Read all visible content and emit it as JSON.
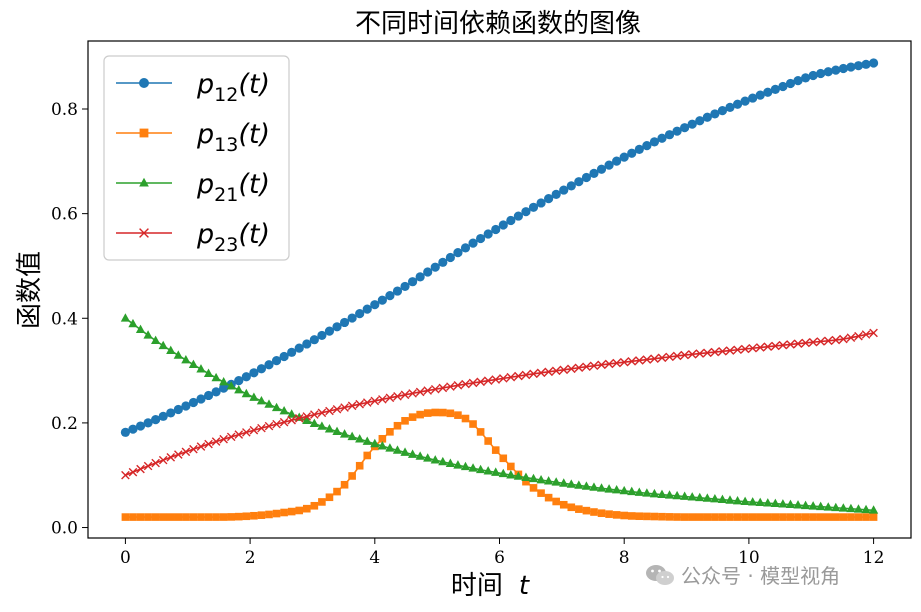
{
  "chart_data": {
    "type": "line",
    "title": "不同时间依赖函数的图像",
    "xlabel": "时间",
    "xlabel_var": "t",
    "ylabel": "函数值",
    "xlim": [
      -0.6,
      12.6
    ],
    "ylim": [
      -0.02,
      0.93
    ],
    "x_ticks": [
      0,
      2,
      4,
      6,
      8,
      10,
      12
    ],
    "x_tick_labels": [
      "0",
      "2",
      "4",
      "6",
      "8",
      "10",
      "12"
    ],
    "y_ticks": [
      0.0,
      0.2,
      0.4,
      0.6,
      0.8
    ],
    "y_tick_labels": [
      "0.0",
      "0.2",
      "0.4",
      "0.6",
      "0.8"
    ],
    "legend_position": "top-left",
    "x": [
      0,
      0.5,
      1,
      1.5,
      2,
      2.5,
      3,
      3.5,
      4,
      4.5,
      5,
      5.5,
      6,
      6.5,
      7,
      7.5,
      8,
      8.5,
      9,
      9.5,
      10,
      10.5,
      11,
      11.5,
      12
    ],
    "series": [
      {
        "name": "p12(t)",
        "label_base": "p",
        "label_sub": "12",
        "label_arg": "(t)",
        "color": "#1f77b4",
        "marker": "circle",
        "values": [
          0.182,
          0.207,
          0.234,
          0.262,
          0.292,
          0.324,
          0.357,
          0.391,
          0.426,
          0.462,
          0.5,
          0.538,
          0.574,
          0.609,
          0.643,
          0.676,
          0.708,
          0.738,
          0.766,
          0.793,
          0.818,
          0.841,
          0.863,
          0.877,
          0.888
        ]
      },
      {
        "name": "p13(t)",
        "label_base": "p",
        "label_sub": "13",
        "label_arg": "(t)",
        "color": "#ff7f0e",
        "marker": "square",
        "values": [
          0.02,
          0.02,
          0.02,
          0.02,
          0.022,
          0.028,
          0.04,
          0.08,
          0.155,
          0.205,
          0.22,
          0.205,
          0.14,
          0.08,
          0.045,
          0.03,
          0.023,
          0.021,
          0.02,
          0.02,
          0.02,
          0.02,
          0.02,
          0.02,
          0.02
        ]
      },
      {
        "name": "p21(t)",
        "label_base": "p",
        "label_sub": "21",
        "label_arg": "(t)",
        "color": "#2ca02c",
        "marker": "triangle",
        "values": [
          0.4,
          0.356,
          0.318,
          0.283,
          0.252,
          0.225,
          0.2,
          0.179,
          0.16,
          0.143,
          0.128,
          0.115,
          0.104,
          0.094,
          0.085,
          0.077,
          0.07,
          0.064,
          0.059,
          0.054,
          0.049,
          0.045,
          0.041,
          0.037,
          0.033
        ]
      },
      {
        "name": "p23(t)",
        "label_base": "p",
        "label_sub": "23",
        "label_arg": "(t)",
        "color": "#d62728",
        "marker": "x",
        "values": [
          0.1,
          0.124,
          0.146,
          0.166,
          0.184,
          0.2,
          0.215,
          0.229,
          0.242,
          0.254,
          0.265,
          0.275,
          0.284,
          0.293,
          0.301,
          0.309,
          0.316,
          0.323,
          0.33,
          0.336,
          0.342,
          0.348,
          0.354,
          0.36,
          0.372
        ]
      }
    ]
  },
  "watermark": {
    "text": "公众号 · 模型视角",
    "icon": "wechat-icon"
  }
}
